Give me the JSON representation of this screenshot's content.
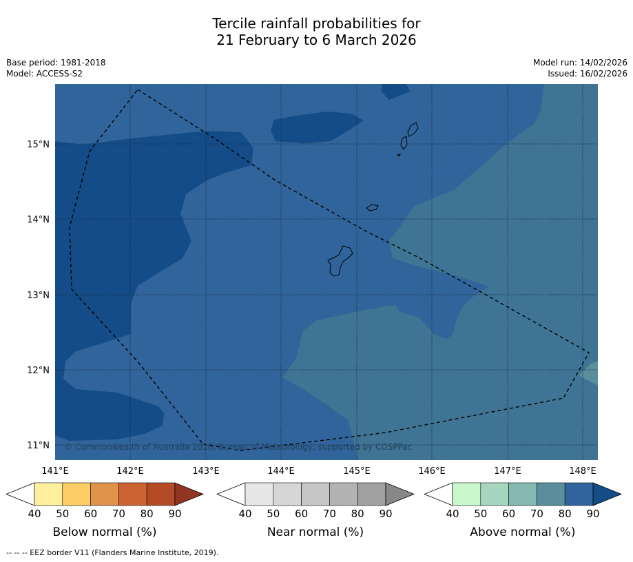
{
  "title_line1": "Tercile rainfall probabilities for",
  "title_line2": "21 February to 6 March 2026",
  "meta": {
    "base_period": "Base period: 1981-2018",
    "model": "Model: ACCESS-S2",
    "model_run": "Model run: 14/02/2026",
    "issued": "Issued: 16/02/2026"
  },
  "map": {
    "copyright": "© Commonwealth of Australia 2026, Bureau of Meteorology, supported by COSPPac",
    "lon_ticks": [
      "141°E",
      "142°E",
      "143°E",
      "144°E",
      "145°E",
      "146°E",
      "147°E",
      "148°E"
    ],
    "lat_ticks": [
      "15°N",
      "14°N",
      "13°N",
      "12°N",
      "11°N"
    ],
    "colors": {
      "above_80": "#134c87",
      "above_70": "#31649a",
      "above_60": "#3f7494",
      "above_50": "#5a8e9c"
    }
  },
  "colorbars": [
    {
      "label": "Below normal (%)",
      "ticks": [
        "40",
        "50",
        "60",
        "70",
        "80",
        "90"
      ],
      "colors": [
        "#fff0a0",
        "#fdcd65",
        "#e0934b",
        "#cc6333",
        "#b34b27",
        "#913422"
      ]
    },
    {
      "label": "Near normal (%)",
      "ticks": [
        "40",
        "50",
        "60",
        "70",
        "80",
        "90"
      ],
      "colors": [
        "#e6e6e6",
        "#d6d6d6",
        "#c6c6c6",
        "#b3b3b3",
        "#a0a0a0",
        "#888888"
      ]
    },
    {
      "label": "Above normal (%)",
      "ticks": [
        "40",
        "50",
        "60",
        "70",
        "80",
        "90"
      ],
      "colors": [
        "#c9f8cd",
        "#a7d6bf",
        "#84b8b0",
        "#5a8e9c",
        "#31649a",
        "#134c87"
      ]
    }
  ],
  "footnote": "-- -- -- EEZ border V11 (Flanders Marine Institute, 2019)."
}
